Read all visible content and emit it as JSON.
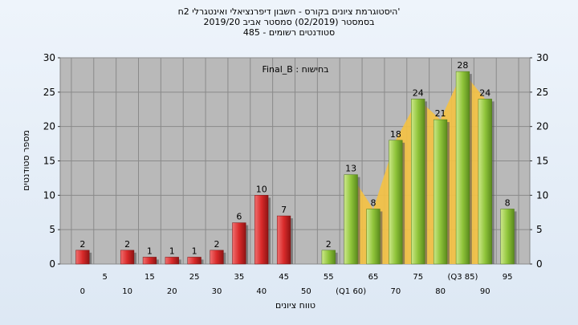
{
  "titles": {
    "line1": "'היסטוגרמת ציונים בקורס - חשבון דיפרנציאלי ואינטגרלי 2ח",
    "line2": "בסמסטר  (02/2019)  סמסטר אביב 2019/20",
    "line3": "סטודנטים רשומים - 485"
  },
  "legend_text": "Final_B : בחישוח",
  "colors": {
    "failing_bar": "#d92a2a",
    "passing_bar": "#8fc43a",
    "area_fill": "#f5c242",
    "plot_bg": "#b9b9b9",
    "grid": "#8a8a8a"
  },
  "chart_data": {
    "type": "bar",
    "ylabel": "מספר סטודנטים",
    "xlabel": "טווח ציונים",
    "ylim": [
      0,
      30
    ],
    "yticks": [
      0,
      5,
      10,
      15,
      20,
      25,
      30
    ],
    "grid": true,
    "categories": [
      "0",
      "5",
      "10",
      "15",
      "20",
      "25",
      "30",
      "35",
      "40",
      "45",
      "50",
      "55",
      "60",
      "65",
      "70",
      "75",
      "80",
      "85",
      "90",
      "95"
    ],
    "x_tick_labels": [
      "0",
      "5",
      "10",
      "15",
      "20",
      "25",
      "30",
      "35",
      "40",
      "45",
      "50",
      "55",
      "(Q1 60)",
      "65",
      "70",
      "75",
      "80",
      "(Q3 85)",
      "90",
      "95"
    ],
    "values": [
      2,
      0,
      2,
      1,
      1,
      1,
      2,
      6,
      10,
      7,
      0,
      2,
      13,
      8,
      18,
      24,
      21,
      28,
      24,
      8
    ],
    "passing_from_index": 11,
    "quartile_area": {
      "from_index": 12,
      "to_index": 18
    }
  }
}
